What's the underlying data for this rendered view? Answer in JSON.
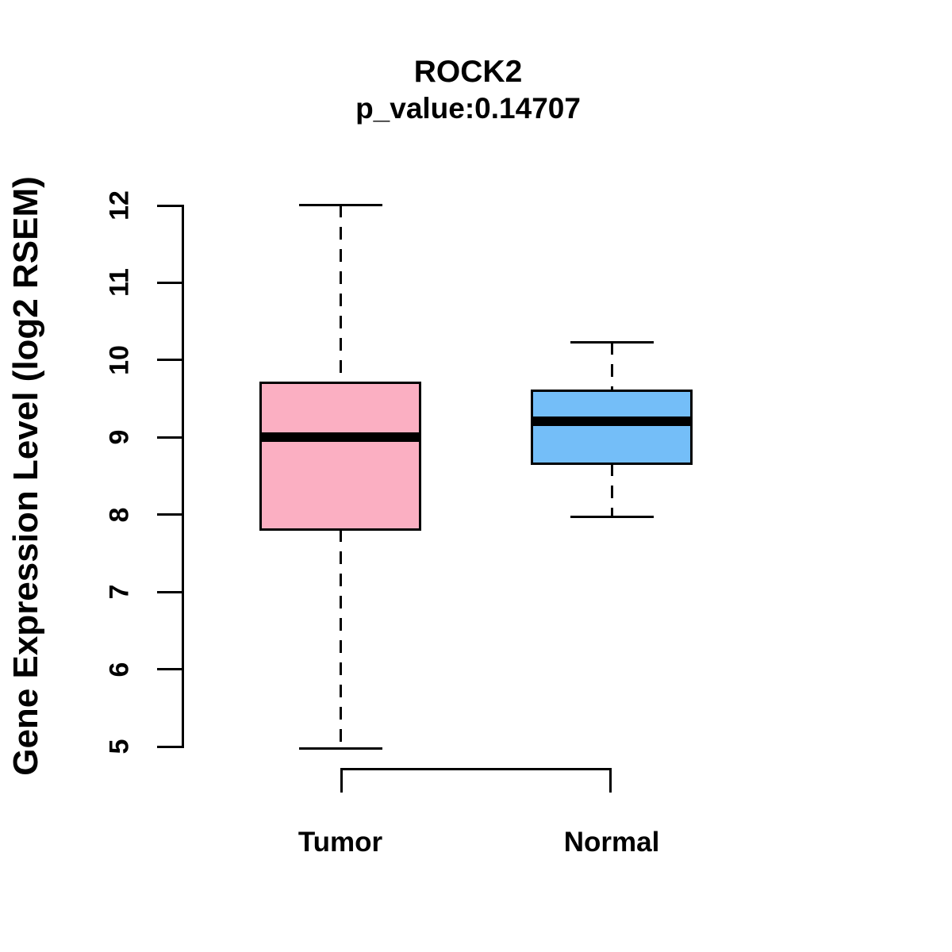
{
  "figure": {
    "background": "#FFFFFF",
    "line_color": "#000000"
  },
  "chart_data": {
    "type": "boxplot",
    "title": "ROCK2",
    "subtitle": "p_value:0.14707",
    "ylabel": "Gene Expression Level (log2 RSEM)",
    "xlabel": "",
    "categories": [
      "Tumor",
      "Normal"
    ],
    "series": [
      {
        "name": "Tumor",
        "color": "#FBAFC2",
        "whisker_low": 4.97,
        "q1": 7.81,
        "median": 9.0,
        "q3": 9.71,
        "whisker_high": 12.01
      },
      {
        "name": "Normal",
        "color": "#74BEF8",
        "whisker_low": 7.97,
        "q1": 8.66,
        "median": 9.21,
        "q3": 9.6,
        "whisker_high": 10.23
      }
    ],
    "ylim": [
      5,
      12
    ],
    "yticks": [
      5,
      6,
      7,
      8,
      9,
      10,
      11,
      12
    ],
    "grid": false,
    "legend": "none",
    "whisker_style": "dashed",
    "box_border_color": "#000000",
    "median_color": "#000000"
  }
}
